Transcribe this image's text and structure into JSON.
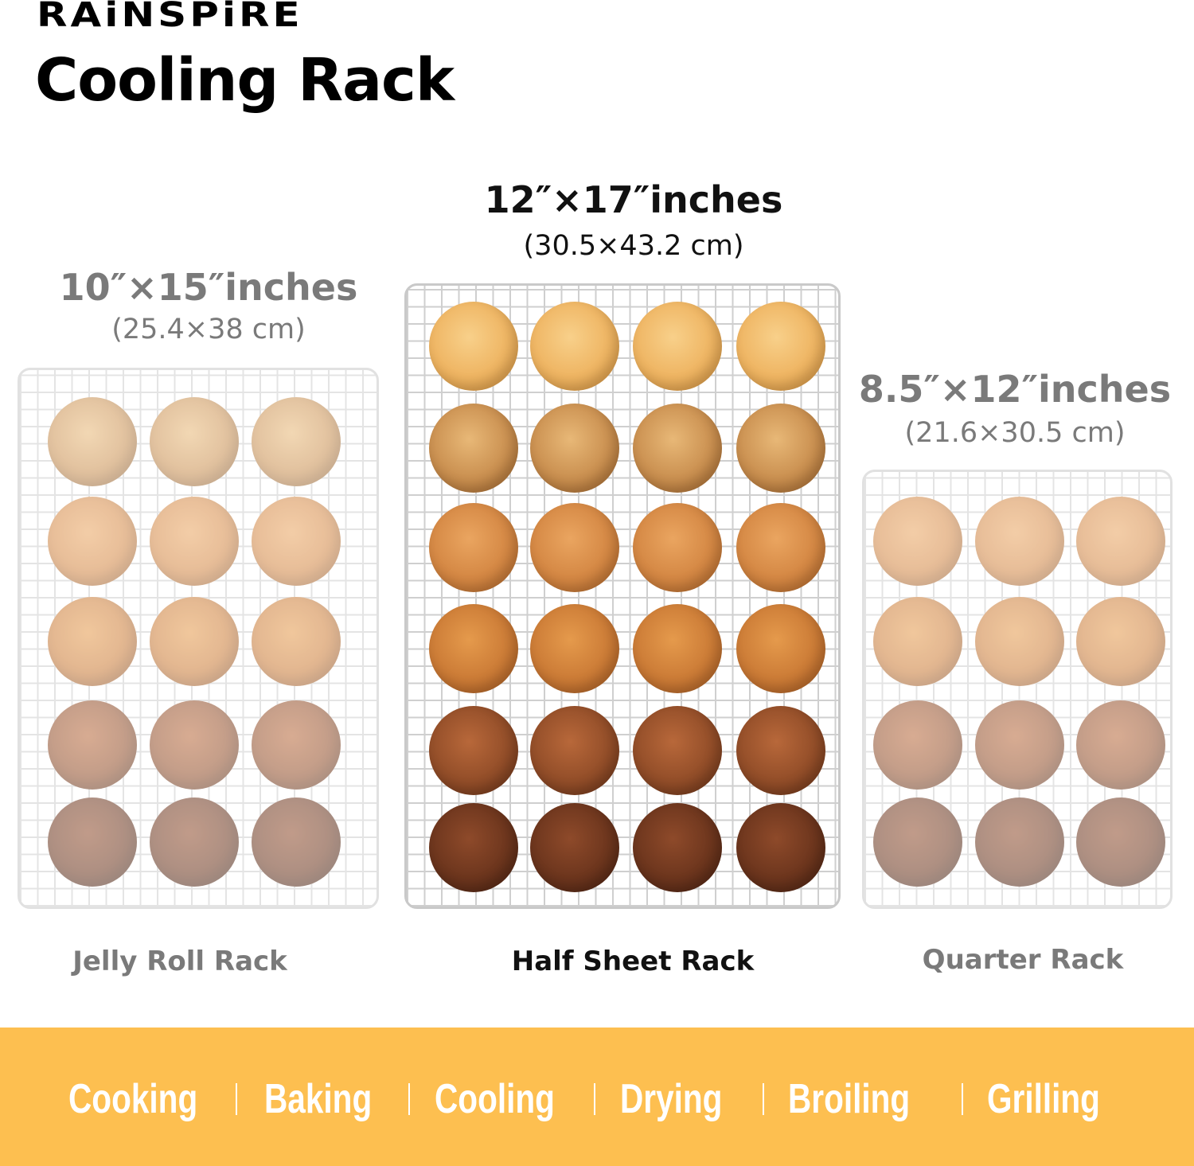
{
  "brand": "RAiNSPiRE",
  "title": "Cooling Rack",
  "racks": [
    {
      "size": "10″×15″inches",
      "metric": "(25.4×38 cm)",
      "name": "Jelly Roll Rack",
      "columns": 3,
      "rows": 5
    },
    {
      "size": "12″×17″inches",
      "metric": "(30.5×43.2 cm)",
      "name": "Half Sheet Rack",
      "columns": 4,
      "rows": 6
    },
    {
      "size": "8.5″×12″inches",
      "metric": "(21.6×30.5 cm)",
      "name": "Quarter Rack",
      "columns": 3,
      "rows": 4
    }
  ],
  "uses": [
    "Cooking",
    "Baking",
    "Cooling",
    "Drying",
    "Broiling",
    "Grilling"
  ],
  "colors": {
    "banner": "#fdbf50",
    "highlight_text": "#111111",
    "muted_text": "#7a7a7a"
  }
}
